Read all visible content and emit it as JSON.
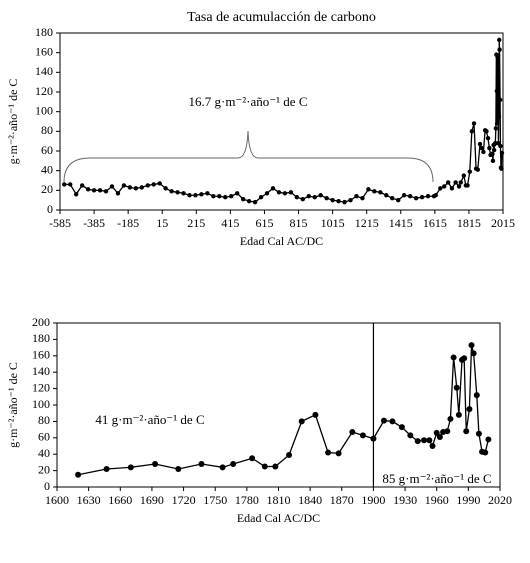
{
  "chart_data": [
    {
      "type": "line",
      "title": "Tasa de acumulacción de carbono",
      "x_label": "Edad Cal AC/DC",
      "y_label": "g·m⁻²·año⁻¹ de C",
      "annotations": [
        "16.7 g·m⁻²·año⁻¹ de C"
      ],
      "color": "#000000",
      "markers": true,
      "xlim": [
        -585,
        2015
      ],
      "xticks": [
        -585,
        -385,
        -185,
        15,
        215,
        415,
        615,
        815,
        1015,
        1215,
        1415,
        1615,
        1815,
        2015
      ],
      "ylim": [
        0,
        180
      ],
      "yticks": [
        0,
        20,
        40,
        60,
        80,
        100,
        120,
        140,
        160,
        180
      ],
      "x": [
        -560,
        -525,
        -490,
        -455,
        -420,
        -385,
        -350,
        -315,
        -280,
        -245,
        -210,
        -175,
        -140,
        -105,
        -70,
        -35,
        0,
        35,
        70,
        105,
        140,
        175,
        210,
        245,
        280,
        315,
        350,
        385,
        420,
        455,
        490,
        525,
        560,
        595,
        630,
        665,
        700,
        735,
        770,
        805,
        840,
        875,
        910,
        945,
        980,
        1015,
        1050,
        1085,
        1120,
        1155,
        1190,
        1225,
        1260,
        1295,
        1330,
        1365,
        1400,
        1435,
        1470,
        1505,
        1540,
        1575,
        1610,
        1620,
        1647,
        1670,
        1693,
        1715,
        1737,
        1757,
        1767,
        1785,
        1797,
        1807,
        1820,
        1832,
        1845,
        1857,
        1867,
        1880,
        1890,
        1900,
        1910,
        1918,
        1927,
        1935,
        1942,
        1948,
        1953,
        1956,
        1960,
        1963,
        1966,
        1970,
        1973,
        1976,
        1979,
        1981,
        1984,
        1986,
        1988,
        1991,
        1993,
        1995,
        1998,
        2000,
        2003,
        2006,
        2009
      ],
      "values": [
        26,
        26,
        16,
        25,
        21,
        20,
        20,
        19,
        24,
        17,
        25,
        23,
        22,
        23,
        25,
        26,
        27,
        22,
        19,
        18,
        17,
        15,
        15,
        16,
        17,
        14,
        14,
        13,
        14,
        17,
        11,
        9,
        8,
        13,
        17,
        22,
        18,
        17,
        18,
        13,
        11,
        14,
        13,
        15,
        12,
        10,
        9,
        8,
        10,
        14,
        12,
        21,
        19,
        18,
        15,
        12,
        10,
        15,
        14,
        12,
        13,
        14,
        14,
        15,
        22,
        24,
        28,
        22,
        28,
        24,
        28,
        35,
        25,
        25,
        39,
        80,
        88,
        42,
        41,
        67,
        63,
        59,
        81,
        80,
        73,
        63,
        56,
        57,
        57,
        50,
        66,
        61,
        67,
        68,
        83,
        158,
        121,
        88,
        155,
        157,
        68,
        95,
        173,
        163,
        112,
        65,
        43,
        42,
        58
      ]
    },
    {
      "type": "line",
      "x_label": "Edad Cal AC/DC",
      "y_label": "g·m⁻²·año⁻¹ de C",
      "annotations": [
        "41 g·m⁻²·año⁻¹  de C",
        "85 g·m⁻²·año⁻¹ de C"
      ],
      "color": "#000000",
      "markers": true,
      "vline": 1900,
      "xlim": [
        1600,
        2020
      ],
      "xticks": [
        1600,
        1630,
        1660,
        1690,
        1720,
        1750,
        1780,
        1810,
        1840,
        1870,
        1900,
        1930,
        1960,
        1990,
        2020
      ],
      "ylim": [
        0,
        200
      ],
      "yticks": [
        0,
        20,
        40,
        60,
        80,
        100,
        120,
        140,
        160,
        180,
        200
      ],
      "x": [
        1620,
        1647,
        1670,
        1693,
        1715,
        1737,
        1757,
        1767,
        1785,
        1797,
        1807,
        1820,
        1832,
        1845,
        1857,
        1867,
        1880,
        1890,
        1900,
        1910,
        1918,
        1927,
        1935,
        1942,
        1948,
        1953,
        1956,
        1960,
        1963,
        1966,
        1970,
        1973,
        1976,
        1979,
        1981,
        1984,
        1986,
        1988,
        1991,
        1993,
        1995,
        1998,
        2000,
        2003,
        2006,
        2009
      ],
      "values": [
        15,
        22,
        24,
        28,
        22,
        28,
        24,
        28,
        35,
        25,
        25,
        39,
        80,
        88,
        42,
        41,
        67,
        63,
        59,
        81,
        80,
        73,
        63,
        56,
        57,
        57,
        50,
        66,
        61,
        67,
        68,
        83,
        158,
        121,
        88,
        155,
        157,
        68,
        95,
        173,
        163,
        112,
        65,
        43,
        42,
        58
      ]
    }
  ]
}
